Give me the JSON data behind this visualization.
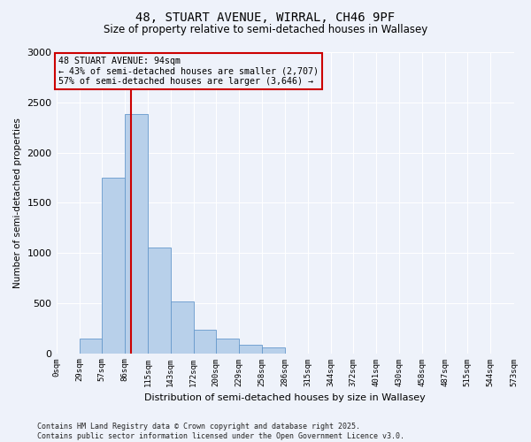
{
  "title1": "48, STUART AVENUE, WIRRAL, CH46 9PF",
  "title2": "Size of property relative to semi-detached houses in Wallasey",
  "xlabel": "Distribution of semi-detached houses by size in Wallasey",
  "ylabel": "Number of semi-detached properties",
  "bin_edges": [
    0,
    29,
    57,
    86,
    115,
    143,
    172,
    200,
    229,
    258,
    286,
    315,
    344,
    372,
    401,
    430,
    458,
    487,
    515,
    544,
    573
  ],
  "bar_heights": [
    0,
    150,
    1750,
    2380,
    1050,
    520,
    230,
    150,
    80,
    55,
    0,
    0,
    0,
    0,
    0,
    0,
    0,
    0,
    0,
    0
  ],
  "bar_color": "#b8d0ea",
  "bar_edge_color": "#6699cc",
  "vline_x": 94,
  "vline_color": "#cc0000",
  "annotation_box_color": "#cc0000",
  "annotation_lines": [
    "48 STUART AVENUE: 94sqm",
    "← 43% of semi-detached houses are smaller (2,707)",
    "57% of semi-detached houses are larger (3,646) →"
  ],
  "ylim": [
    0,
    3000
  ],
  "yticks": [
    0,
    500,
    1000,
    1500,
    2000,
    2500,
    3000
  ],
  "tick_labels": [
    "0sqm",
    "29sqm",
    "57sqm",
    "86sqm",
    "115sqm",
    "143sqm",
    "172sqm",
    "200sqm",
    "229sqm",
    "258sqm",
    "286sqm",
    "315sqm",
    "344sqm",
    "372sqm",
    "401sqm",
    "430sqm",
    "458sqm",
    "487sqm",
    "515sqm",
    "544sqm",
    "573sqm"
  ],
  "footer": "Contains HM Land Registry data © Crown copyright and database right 2025.\nContains public sector information licensed under the Open Government Licence v3.0.",
  "background_color": "#eef2fa",
  "grid_color": "#ffffff"
}
